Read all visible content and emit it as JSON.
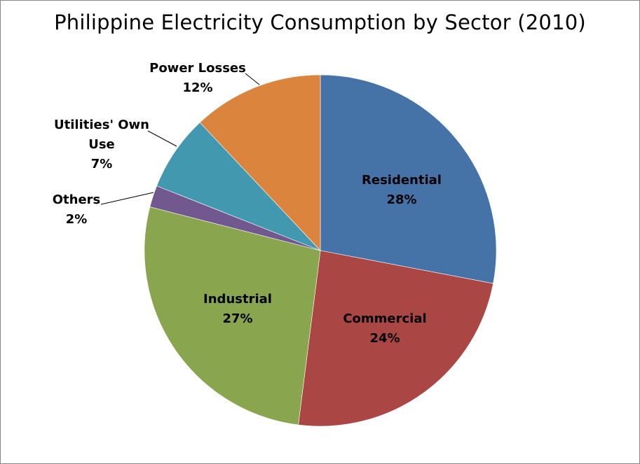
{
  "chart_data": {
    "type": "pie",
    "title": "Philippine Electricity Consumption by Sector (2010)",
    "slices": [
      {
        "name": "Residential",
        "value": 28,
        "label": "28%",
        "color": "#4572a7"
      },
      {
        "name": "Commercial",
        "value": 24,
        "label": "24%",
        "color": "#aa4643"
      },
      {
        "name": "Industrial",
        "value": 27,
        "label": "27%",
        "color": "#89a54e"
      },
      {
        "name": "Others",
        "value": 2,
        "label": "2%",
        "color": "#71588f"
      },
      {
        "name": "Utilities' Own Use",
        "value": 7,
        "label": "7%",
        "color": "#4198af"
      },
      {
        "name": "Power Losses",
        "value": 12,
        "label": "12%",
        "color": "#db843d"
      }
    ]
  }
}
